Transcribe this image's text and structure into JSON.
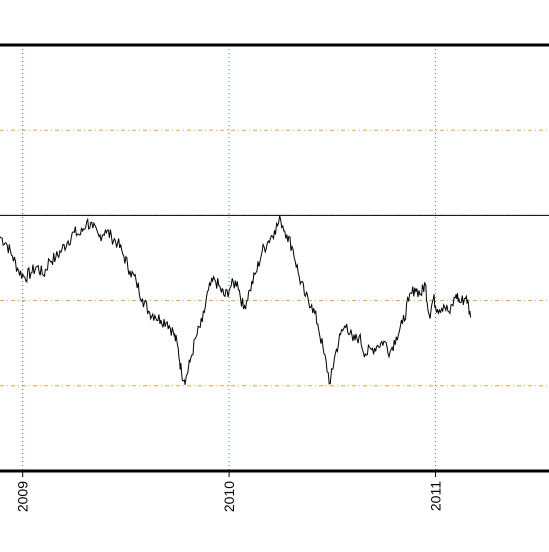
{
  "chart_data": {
    "type": "line",
    "title": "",
    "xlabel": "",
    "ylabel": "",
    "x_ticks": [
      {
        "label": "2009",
        "x": 2009.0
      },
      {
        "label": "2010",
        "x": 2010.0
      },
      {
        "label": "2011",
        "x": 2011.0
      }
    ],
    "xlim": [
      2008.89,
      2011.55
    ],
    "ylim": [
      0,
      100
    ],
    "grid": {
      "vertical": "dotted",
      "color_vertical": "#2e8b57",
      "color_horizontal": "#e8a33a"
    },
    "horizontal_gridlines": [
      20,
      40,
      60,
      80
    ],
    "reference_line": 60,
    "colors": {
      "line": "#000000",
      "reference": "#000000",
      "vertical_grid": "#2e8b57",
      "horizontal_grid": "#e8a33a"
    },
    "series": [
      {
        "values": [
          [
            2008.89,
            55.0
          ],
          [
            2008.92,
            53.5
          ],
          [
            2008.95,
            50.5
          ],
          [
            2008.98,
            47.0
          ],
          [
            2009.01,
            45.5
          ],
          [
            2009.04,
            46.5
          ],
          [
            2009.07,
            48.0
          ],
          [
            2009.1,
            46.0
          ],
          [
            2009.13,
            49.5
          ],
          [
            2009.16,
            50.0
          ],
          [
            2009.19,
            52.0
          ],
          [
            2009.22,
            54.0
          ],
          [
            2009.25,
            56.0
          ],
          [
            2009.28,
            55.5
          ],
          [
            2009.31,
            58.5
          ],
          [
            2009.34,
            57.0
          ],
          [
            2009.37,
            55.0
          ],
          [
            2009.4,
            56.5
          ],
          [
            2009.43,
            55.0
          ],
          [
            2009.46,
            53.5
          ],
          [
            2009.49,
            50.5
          ],
          [
            2009.52,
            47.0
          ],
          [
            2009.55,
            44.5
          ],
          [
            2009.58,
            40.5
          ],
          [
            2009.61,
            37.5
          ],
          [
            2009.64,
            36.5
          ],
          [
            2009.67,
            35.5
          ],
          [
            2009.7,
            35.0
          ],
          [
            2009.73,
            32.5
          ],
          [
            2009.75,
            29.5
          ],
          [
            2009.77,
            23.0
          ],
          [
            2009.79,
            21.5
          ],
          [
            2009.81,
            25.5
          ],
          [
            2009.84,
            31.5
          ],
          [
            2009.87,
            35.0
          ],
          [
            2009.9,
            42.5
          ],
          [
            2009.93,
            45.0
          ],
          [
            2009.96,
            42.5
          ],
          [
            2009.98,
            41.0
          ],
          [
            2010.01,
            43.5
          ],
          [
            2010.04,
            44.5
          ],
          [
            2010.07,
            38.0
          ],
          [
            2010.1,
            42.5
          ],
          [
            2010.13,
            46.5
          ],
          [
            2010.16,
            51.5
          ],
          [
            2010.19,
            54.0
          ],
          [
            2010.22,
            56.5
          ],
          [
            2010.25,
            59.0
          ],
          [
            2010.28,
            55.5
          ],
          [
            2010.31,
            52.0
          ],
          [
            2010.34,
            45.5
          ],
          [
            2010.37,
            41.0
          ],
          [
            2010.4,
            39.0
          ],
          [
            2010.43,
            34.5
          ],
          [
            2010.46,
            27.5
          ],
          [
            2010.49,
            20.5
          ],
          [
            2010.51,
            26.5
          ],
          [
            2010.54,
            32.0
          ],
          [
            2010.57,
            34.5
          ],
          [
            2010.6,
            30.5
          ],
          [
            2010.63,
            31.5
          ],
          [
            2010.66,
            27.5
          ],
          [
            2010.69,
            28.5
          ],
          [
            2010.72,
            29.5
          ],
          [
            2010.75,
            30.5
          ],
          [
            2010.78,
            28.0
          ],
          [
            2010.81,
            31.5
          ],
          [
            2010.84,
            34.5
          ],
          [
            2010.87,
            40.0
          ],
          [
            2010.9,
            43.0
          ],
          [
            2010.93,
            41.5
          ],
          [
            2010.95,
            44.0
          ],
          [
            2010.97,
            36.5
          ],
          [
            2010.99,
            40.5
          ],
          [
            2011.01,
            38.0
          ],
          [
            2011.04,
            39.0
          ],
          [
            2011.07,
            37.0
          ],
          [
            2011.1,
            41.5
          ],
          [
            2011.12,
            39.5
          ],
          [
            2011.15,
            41.0
          ],
          [
            2011.17,
            36.0
          ]
        ]
      }
    ]
  }
}
